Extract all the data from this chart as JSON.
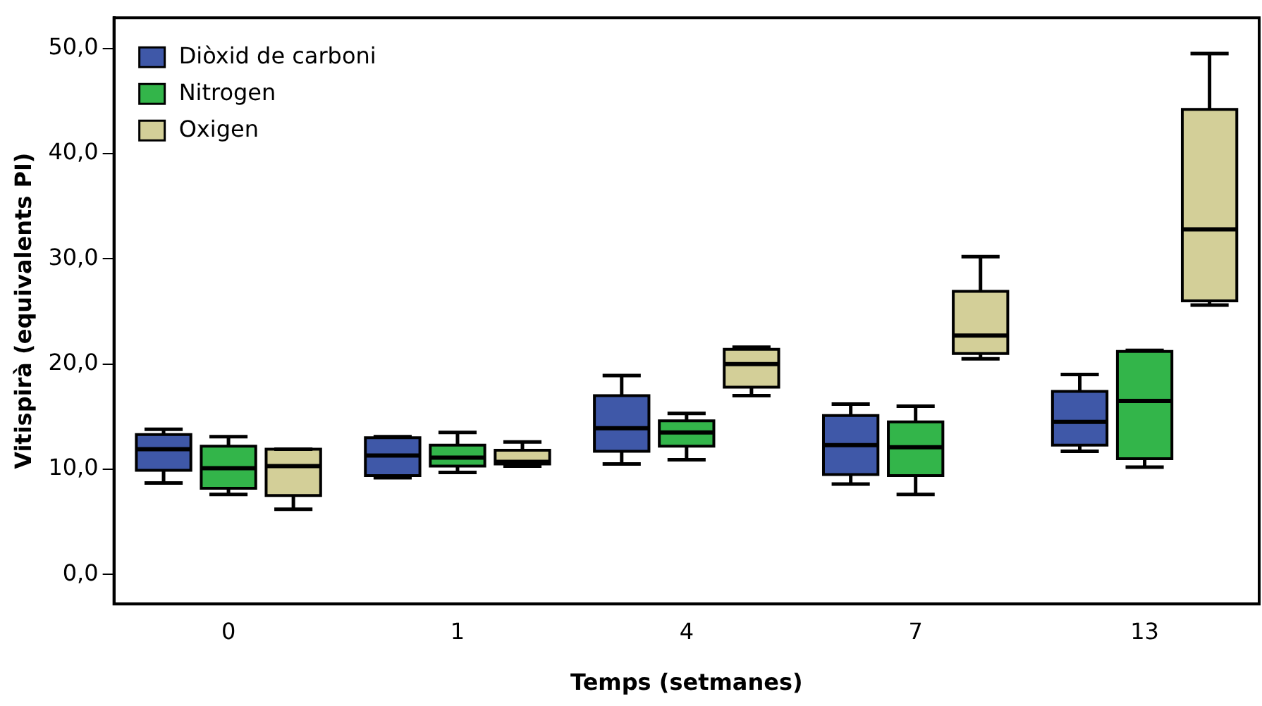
{
  "chart_data": {
    "type": "box",
    "xlabel": "Temps (setmanes)",
    "ylabel": "Vitispirà (equivalents PI)",
    "categories": [
      "0",
      "1",
      "4",
      "7",
      "13"
    ],
    "ylim": [
      -2.8,
      52.9
    ],
    "yticks": [
      {
        "value": 0,
        "label": "0,0"
      },
      {
        "value": 10,
        "label": "10,0"
      },
      {
        "value": 20,
        "label": "20,0"
      },
      {
        "value": 30,
        "label": "30,0"
      },
      {
        "value": 40,
        "label": "40,0"
      },
      {
        "value": 50,
        "label": "50,0"
      }
    ],
    "grid": false,
    "legend": "top left",
    "series": [
      {
        "name": "Diòxid de carboni",
        "color": "#3f58a8",
        "boxes": [
          {
            "low": 8.7,
            "q1": 9.9,
            "median": 11.9,
            "q3": 13.3,
            "high": 13.8
          },
          {
            "low": 9.2,
            "q1": 9.4,
            "median": 11.3,
            "q3": 13.0,
            "high": 13.1
          },
          {
            "low": 10.5,
            "q1": 11.7,
            "median": 13.9,
            "q3": 17.0,
            "high": 18.9
          },
          {
            "low": 8.6,
            "q1": 9.5,
            "median": 12.3,
            "q3": 15.1,
            "high": 16.2
          },
          {
            "low": 11.7,
            "q1": 12.3,
            "median": 14.5,
            "q3": 17.4,
            "high": 19.0
          }
        ]
      },
      {
        "name": "Nitrogen",
        "color": "#33b54a",
        "boxes": [
          {
            "low": 7.6,
            "q1": 8.2,
            "median": 10.1,
            "q3": 12.2,
            "high": 13.1
          },
          {
            "low": 9.7,
            "q1": 10.3,
            "median": 11.1,
            "q3": 12.3,
            "high": 13.5
          },
          {
            "low": 10.9,
            "q1": 12.2,
            "median": 13.5,
            "q3": 14.6,
            "high": 15.3
          },
          {
            "low": 7.6,
            "q1": 9.4,
            "median": 12.1,
            "q3": 14.5,
            "high": 16.0
          },
          {
            "low": 10.2,
            "q1": 11.0,
            "median": 16.5,
            "q3": 21.2,
            "high": 21.3
          }
        ]
      },
      {
        "name": "Oxigen",
        "color": "#d3cf98",
        "boxes": [
          {
            "low": 6.2,
            "q1": 7.5,
            "median": 10.3,
            "q3": 11.9,
            "high": 11.9
          },
          {
            "low": 10.3,
            "q1": 10.5,
            "median": 10.7,
            "q3": 11.8,
            "high": 12.6
          },
          {
            "low": 17.0,
            "q1": 17.8,
            "median": 20.0,
            "q3": 21.4,
            "high": 21.6
          },
          {
            "low": 20.5,
            "q1": 21.0,
            "median": 22.7,
            "q3": 26.9,
            "high": 30.2
          },
          {
            "low": 25.6,
            "q1": 26.0,
            "median": 32.8,
            "q3": 44.2,
            "high": 49.5
          }
        ]
      }
    ]
  }
}
